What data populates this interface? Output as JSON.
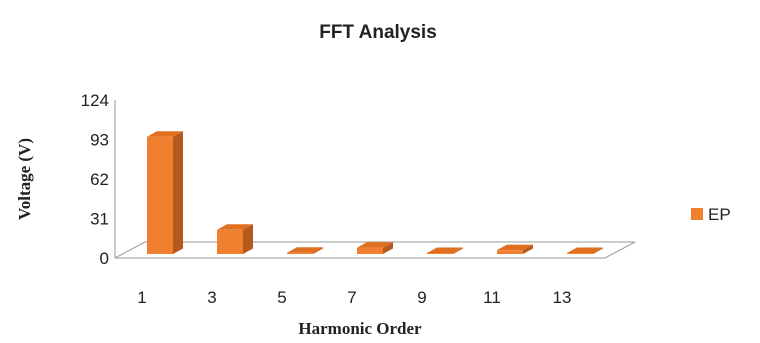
{
  "chart_data": {
    "type": "bar",
    "title": "FFT Analysis",
    "xlabel": "Harmonic Order",
    "ylabel": "Voltage (V)",
    "categories": [
      "1",
      "3",
      "5",
      "7",
      "9",
      "11",
      "13"
    ],
    "series": [
      {
        "name": "EP",
        "values": [
          92,
          19,
          1,
          5,
          0.5,
          3,
          0.5
        ]
      }
    ],
    "ylim": [
      0,
      124
    ],
    "yticks": [
      "0",
      "31",
      "62",
      "93",
      "124"
    ],
    "grid": false,
    "legend_position": "right",
    "style": "3d-column",
    "colors": {
      "front": "#F08030",
      "top": "#E07020",
      "side": "#B55A1E"
    }
  }
}
